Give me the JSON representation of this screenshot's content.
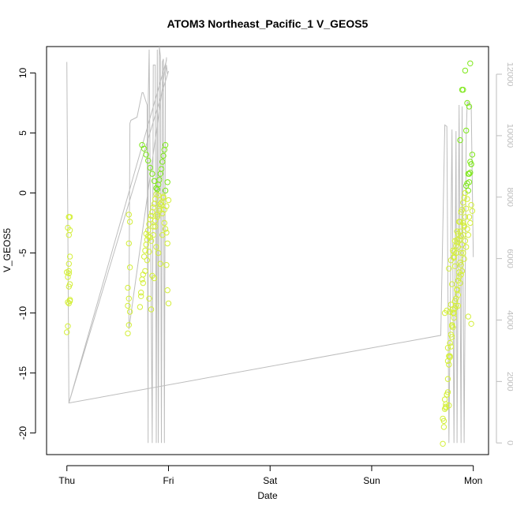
{
  "chart_data": {
    "type": "scatter",
    "title": "ATOM3 Northeast_Pacific_1 V_GEOS5",
    "xlabel": "Date",
    "ylabel": "V_GEOS5",
    "x_ticks": [
      "Thu",
      "Fri",
      "Sat",
      "Sun",
      "Mon"
    ],
    "x_tick_days": [
      0,
      1,
      2,
      3,
      4
    ],
    "xlim_days": [
      -0.2,
      4.15
    ],
    "ylim": [
      -21.8,
      12.2
    ],
    "y_ticks": [
      -20,
      -15,
      -10,
      -5,
      0,
      5,
      10
    ],
    "y_ticks_right": [
      0,
      2000,
      4000,
      6000,
      8000,
      10000,
      12000
    ],
    "ylim_right": [
      -380,
      12900
    ],
    "grid": false,
    "colors": {
      "points_low": "#d4ef3a",
      "points_high": "#7ee81a",
      "altitude_line": "#bdbdbd",
      "right_axis": "#bdbdbd",
      "axis": "#000000"
    },
    "series": [
      {
        "type": "scatter",
        "x_days": [
          0.0,
          0.01,
          0.02,
          0.03,
          0.02,
          0.01,
          0.02,
          0.03,
          0.02,
          0.01,
          0.02,
          0.03,
          0.02,
          0.03,
          0.02,
          0.02,
          0.03,
          0.03,
          0.0,
          0.01,
          0.6,
          0.61,
          0.62,
          0.61,
          0.6,
          0.62,
          0.61,
          0.62,
          0.61,
          0.6,
          0.72,
          0.73,
          0.74,
          0.75,
          0.76,
          0.77,
          0.78,
          0.79,
          0.8,
          0.81,
          0.82,
          0.83,
          0.84,
          0.85,
          0.86,
          0.87,
          0.88,
          0.89,
          0.9,
          0.91,
          0.92,
          0.93,
          0.94,
          0.95,
          0.96,
          0.97,
          0.98,
          0.99,
          1.0,
          0.73,
          0.75,
          0.77,
          0.79,
          0.81,
          0.83,
          0.85,
          0.87,
          0.89,
          0.91,
          0.93,
          0.95,
          0.97,
          0.99,
          0.74,
          0.76,
          0.78,
          0.8,
          0.82,
          0.84,
          0.86,
          0.88,
          0.9,
          0.92,
          0.94,
          0.96,
          0.98,
          0.78,
          0.8,
          0.82,
          0.84,
          0.86,
          0.88,
          0.9,
          0.92,
          0.94,
          0.96,
          0.98,
          1.0,
          0.81,
          0.83,
          0.85,
          0.87,
          0.89,
          0.91,
          0.93,
          0.95,
          0.97,
          0.99,
          3.7,
          3.71,
          3.72,
          3.73,
          3.74,
          3.75,
          3.76,
          3.77,
          3.78,
          3.79,
          3.8,
          3.81,
          3.82,
          3.83,
          3.84,
          3.85,
          3.86,
          3.87,
          3.88,
          3.89,
          3.9,
          3.91,
          3.92,
          3.93,
          3.94,
          3.95,
          3.96,
          3.97,
          3.98,
          3.99,
          3.7,
          3.72,
          3.74,
          3.76,
          3.78,
          3.8,
          3.82,
          3.84,
          3.86,
          3.88,
          3.9,
          3.92,
          3.94,
          3.96,
          3.98,
          3.71,
          3.73,
          3.75,
          3.77,
          3.79,
          3.81,
          3.83,
          3.85,
          3.87,
          3.89,
          3.91,
          3.93,
          3.95,
          3.97,
          3.99,
          3.72,
          3.74,
          3.76,
          3.78,
          3.8,
          3.82,
          3.84,
          3.86,
          3.88,
          3.9,
          3.92,
          3.94,
          3.96,
          3.98,
          3.73,
          3.75,
          3.77,
          3.79,
          3.81,
          3.83,
          3.85,
          3.87,
          3.89,
          3.91,
          3.93,
          3.95,
          3.97,
          3.75,
          3.78,
          3.81,
          3.84,
          3.87,
          3.9,
          3.93,
          3.96,
          3.76,
          3.79,
          3.82,
          3.85,
          3.88,
          3.91,
          3.94,
          3.97,
          3.77,
          3.8,
          3.83,
          3.86,
          3.89,
          3.92,
          3.95,
          3.98,
          3.81,
          3.84,
          3.87,
          3.9,
          3.85,
          3.88
        ],
        "y": [
          -11.6,
          -11.1,
          -9.2,
          -8.9,
          -7.8,
          -7.0,
          -6.5,
          -5.3,
          -3.5,
          -2.9,
          -2.0,
          -2.0,
          -6.7,
          -9.0,
          -5.9,
          -2.0,
          -3.1,
          -7.6,
          -6.6,
          -9.1,
          -11.7,
          -11.0,
          -9.9,
          -8.8,
          -7.9,
          -6.2,
          -4.2,
          -2.4,
          -1.8,
          -9.4,
          -9.5,
          -8.6,
          -7.2,
          -6.8,
          -5.3,
          -4.8,
          -4.3,
          -3.9,
          -3.1,
          -2.6,
          -2.2,
          -1.9,
          -1.6,
          -1.2,
          -0.9,
          -0.5,
          -0.1,
          0.3,
          0.7,
          1.1,
          1.6,
          2.0,
          2.6,
          3.1,
          3.6,
          4.0,
          -6.0,
          -8.1,
          -9.2,
          -8.3,
          -7.5,
          -6.5,
          -5.6,
          -4.9,
          -4.0,
          -3.5,
          -2.8,
          -2.0,
          -1.5,
          -1.0,
          -0.4,
          0.2,
          0.9,
          4.0,
          3.7,
          3.2,
          2.7,
          2.1,
          1.6,
          1.0,
          0.4,
          -0.2,
          -0.9,
          -1.7,
          -2.5,
          -3.3,
          -3.4,
          -3.6,
          -3.7,
          -6.9,
          -7.1,
          -4.5,
          -5.0,
          -5.9,
          -3.5,
          -1.4,
          -1.1,
          -0.6,
          -8.8,
          -9.7,
          -2.8,
          -2.3,
          -1.8,
          -1.3,
          -0.8,
          -0.3,
          -3.0,
          -4.2,
          -20.9,
          -19.0,
          -18.0,
          -17.6,
          -16.8,
          -15.5,
          -14.3,
          -13.7,
          -12.8,
          -12.0,
          -11.2,
          -10.4,
          -9.6,
          -8.8,
          -8.1,
          -7.3,
          -6.6,
          -5.8,
          -5.0,
          -4.3,
          -3.5,
          -2.8,
          -2.0,
          -1.3,
          -0.5,
          0.2,
          0.9,
          1.7,
          2.4,
          3.2,
          -18.8,
          -17.2,
          -16.8,
          -13.6,
          -11.8,
          -10.0,
          -9.0,
          -8.0,
          -7.0,
          -6.0,
          -5.0,
          -4.0,
          -3.0,
          -2.0,
          -1.0,
          -19.5,
          -17.8,
          -14.0,
          -12.5,
          -11.0,
          -10.0,
          -9.4,
          -8.5,
          -7.5,
          -6.5,
          -5.5,
          -4.5,
          -3.5,
          -2.5,
          -1.5,
          -10.0,
          -9.8,
          -6.3,
          -5.6,
          -4.8,
          -4.0,
          -3.2,
          -2.4,
          -1.6,
          -0.8,
          0.0,
          0.8,
          1.6,
          2.4,
          -17.9,
          -12.9,
          -9.9,
          -7.6,
          -5.4,
          -4.4,
          -3.4,
          -2.4,
          -1.4,
          -0.4,
          0.6,
          1.6,
          2.6,
          -16.6,
          -9.3,
          -4.9,
          -3.9,
          -3.2,
          -2.5,
          5.2,
          7.2,
          -17.7,
          -11.1,
          -6.1,
          -4.5,
          -3.6,
          -2.7,
          7.5,
          10.8,
          -13.6,
          -9.7,
          -5.0,
          -3.9,
          8.6,
          10.2,
          -10.3,
          -10.9,
          -5.3,
          -4.1,
          4.4,
          8.6,
          -9.4,
          -6.8
        ]
      },
      {
        "type": "line",
        "name": "altitude",
        "axis": "right",
        "x_days": [
          0.0,
          0.0,
          0.02,
          0.98,
          0.98,
          0.98,
          0.98,
          0.61,
          0.62,
          0.63,
          0.69,
          0.74,
          0.75,
          0.79,
          0.8,
          0.8,
          0.81,
          0.84,
          0.85,
          0.87,
          0.88,
          0.89,
          0.9,
          0.91,
          0.92,
          0.93,
          0.94,
          0.95,
          0.96,
          0.97,
          0.98,
          0.99,
          1.0,
          0.02,
          3.68,
          3.68,
          3.72,
          3.74,
          3.76,
          3.79,
          3.81,
          3.83,
          3.84,
          3.86,
          3.88,
          3.89,
          3.91,
          3.93,
          3.94,
          3.96,
          3.98,
          4.0
        ],
        "y_right": [
          12400,
          12400,
          1300,
          12450,
          12500,
          12550,
          12500,
          3700,
          10400,
          10500,
          10600,
          11400,
          11400,
          11000,
          0,
          11000,
          12800,
          0,
          12300,
          12300,
          0,
          12800,
          0,
          12900,
          12600,
          0,
          12400,
          12500,
          0,
          12000,
          12300,
          12000,
          12100,
          1300,
          3500,
          3500,
          10350,
          10300,
          0,
          10200,
          0,
          10150,
          0,
          11000,
          0,
          10950,
          0,
          10000,
          11100,
          11050,
          10900,
          6050
        ]
      }
    ]
  }
}
